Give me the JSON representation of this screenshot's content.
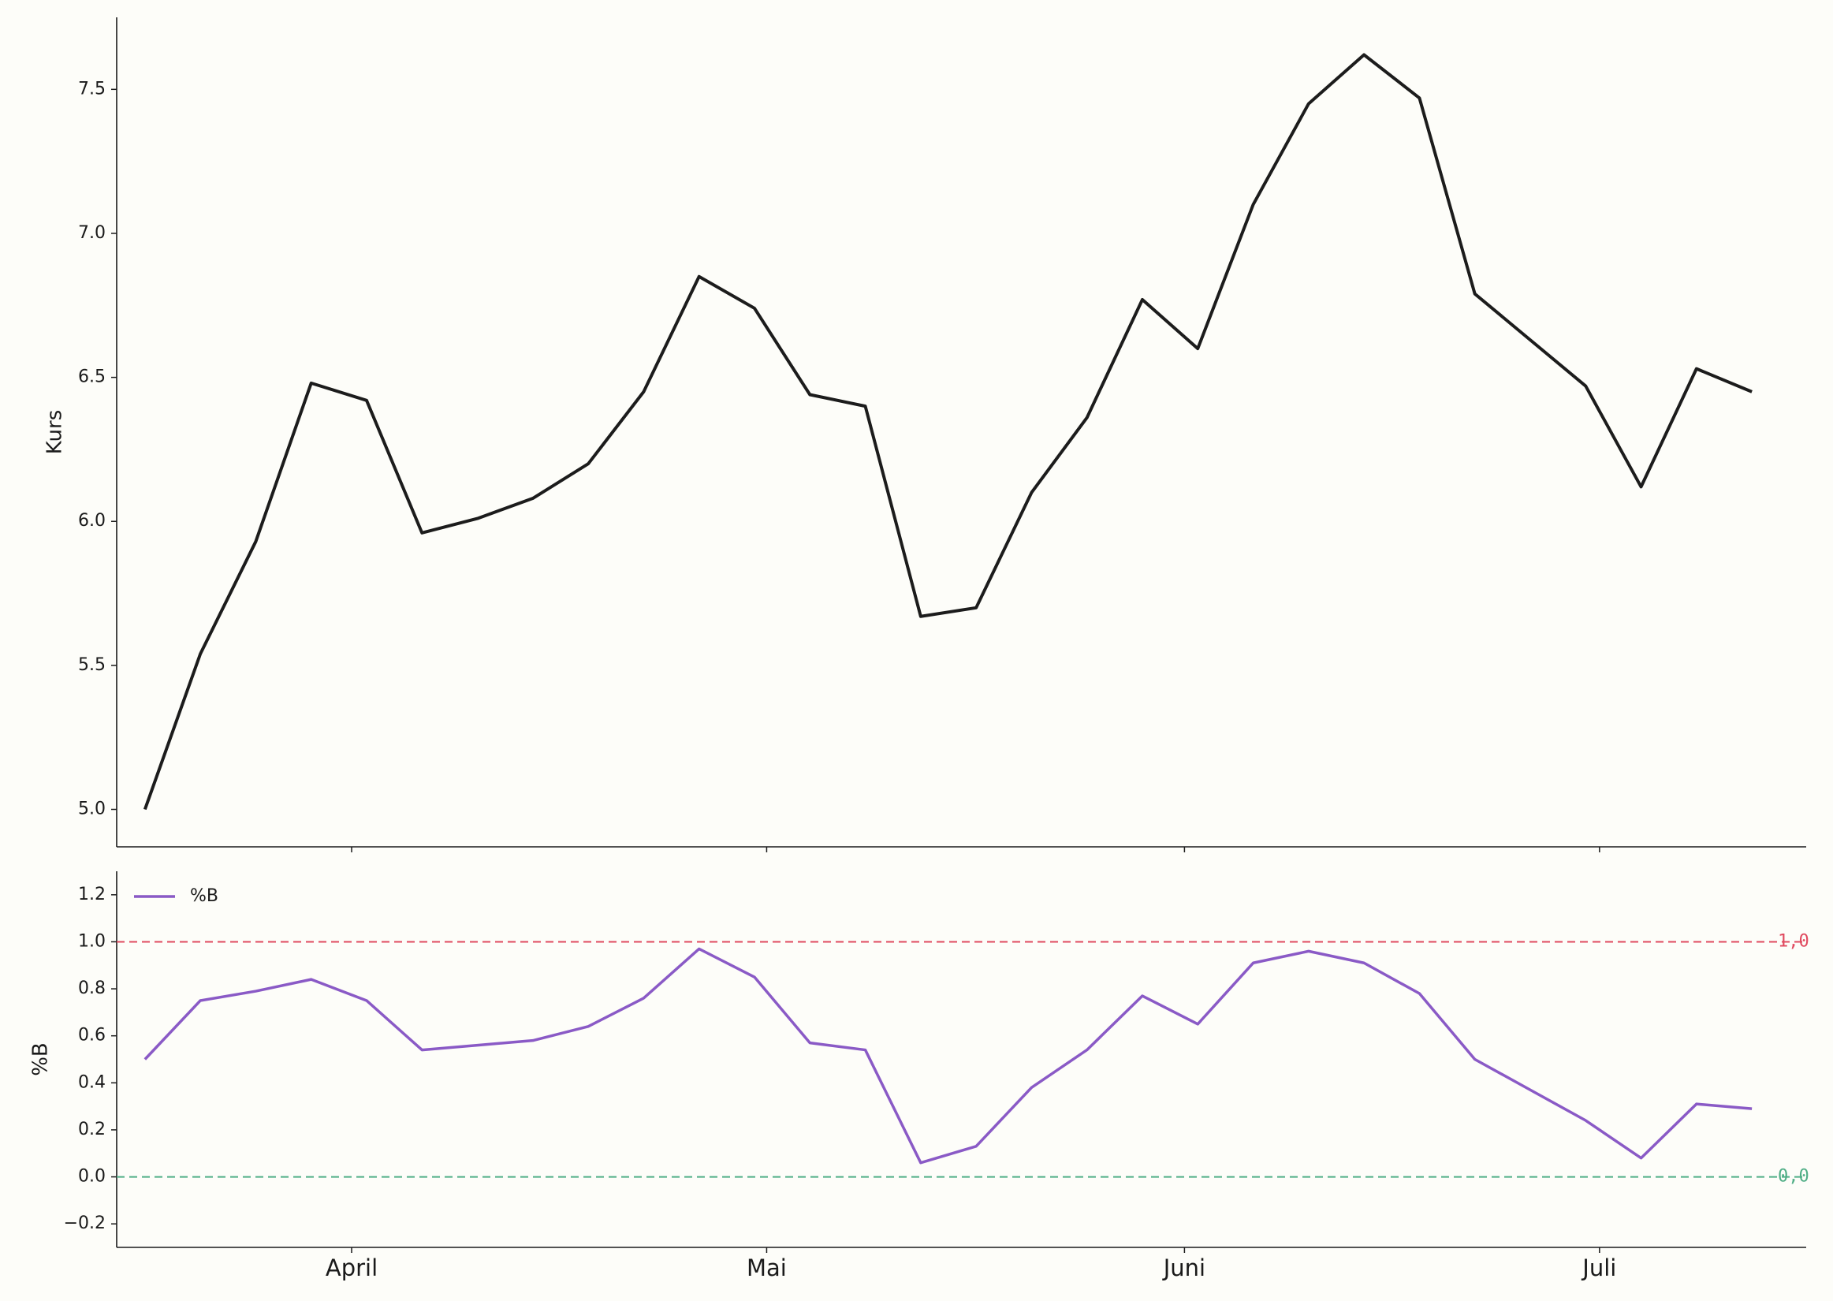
{
  "chart_data": [
    {
      "type": "line",
      "y_label": "Kurs",
      "color": "#1c1c1c",
      "x": [
        0,
        1,
        2,
        3,
        4,
        5,
        6,
        7,
        8,
        9,
        10,
        11,
        12,
        13,
        14,
        15,
        16,
        17,
        18,
        19,
        20,
        21,
        22,
        23,
        24,
        25,
        26,
        27,
        28,
        29
      ],
      "values": [
        5.0,
        5.54,
        5.93,
        6.48,
        6.42,
        5.96,
        6.01,
        6.08,
        6.2,
        6.45,
        6.85,
        6.74,
        6.44,
        6.4,
        5.67,
        5.7,
        6.1,
        6.36,
        6.77,
        6.6,
        7.1,
        7.45,
        7.62,
        7.47,
        6.79,
        6.63,
        6.47,
        6.12,
        6.53,
        6.45
      ],
      "xlim": [
        -0.51,
        29.98
      ],
      "ylim": [
        4.87,
        7.75
      ],
      "yticks": [
        {
          "value": 5.0,
          "label": "5.0"
        },
        {
          "value": 5.5,
          "label": "5.5"
        },
        {
          "value": 6.0,
          "label": "6.0"
        },
        {
          "value": 6.5,
          "label": "6.5"
        },
        {
          "value": 7.0,
          "label": "7.0"
        },
        {
          "value": 7.5,
          "label": "7.5"
        }
      ]
    },
    {
      "type": "line",
      "y_label": "%B",
      "legend": "upper left",
      "x": [
        0,
        1,
        2,
        3,
        4,
        5,
        6,
        7,
        8,
        9,
        10,
        11,
        12,
        13,
        14,
        15,
        16,
        17,
        18,
        19,
        20,
        21,
        22,
        23,
        24,
        25,
        26,
        27,
        28,
        29
      ],
      "series": [
        {
          "name": "%B",
          "color": "#8a5ac6",
          "values": [
            0.5,
            0.75,
            0.79,
            0.84,
            0.75,
            0.54,
            0.56,
            0.58,
            0.64,
            0.76,
            0.97,
            0.85,
            0.57,
            0.54,
            0.06,
            0.13,
            0.38,
            0.54,
            0.77,
            0.65,
            0.91,
            0.96,
            0.91,
            0.78,
            0.5,
            0.37,
            0.24,
            0.08,
            0.31,
            0.29
          ]
        }
      ],
      "reference_lines": [
        {
          "value": 1.0,
          "label": "1,0",
          "color": "#e04a5f"
        },
        {
          "value": 0.0,
          "label": "0,0",
          "color": "#4fae86"
        }
      ],
      "xlim": [
        -0.51,
        29.98
      ],
      "ylim": [
        -0.3,
        1.3
      ],
      "xticks": [
        {
          "value": 3.73,
          "label": "April"
        },
        {
          "value": 11.22,
          "label": "Mai"
        },
        {
          "value": 18.76,
          "label": "Juni"
        },
        {
          "value": 26.25,
          "label": "Juli"
        }
      ],
      "yticks": [
        {
          "value": -0.2,
          "label": "−0.2"
        },
        {
          "value": 0.0,
          "label": "0.0"
        },
        {
          "value": 0.2,
          "label": "0.2"
        },
        {
          "value": 0.4,
          "label": "0.4"
        },
        {
          "value": 0.6,
          "label": "0.6"
        },
        {
          "value": 0.8,
          "label": "0.8"
        },
        {
          "value": 1.0,
          "label": "1.0"
        },
        {
          "value": 1.2,
          "label": "1.2"
        }
      ]
    }
  ]
}
